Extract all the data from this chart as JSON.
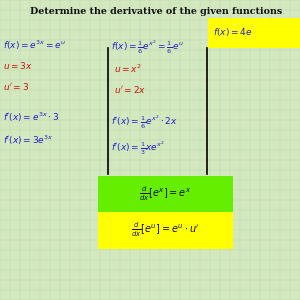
{
  "background_color": "#d4e8c0",
  "grid_color": "#b8d4a8",
  "title": "Determine the derivative of the given functions",
  "blue": "#2222cc",
  "red": "#cc1111",
  "dark": "#111111",
  "green_highlight": "#66ee00",
  "yellow_highlight": "#ffff00",
  "figsize": [
    3.0,
    3.0
  ],
  "dpi": 100
}
